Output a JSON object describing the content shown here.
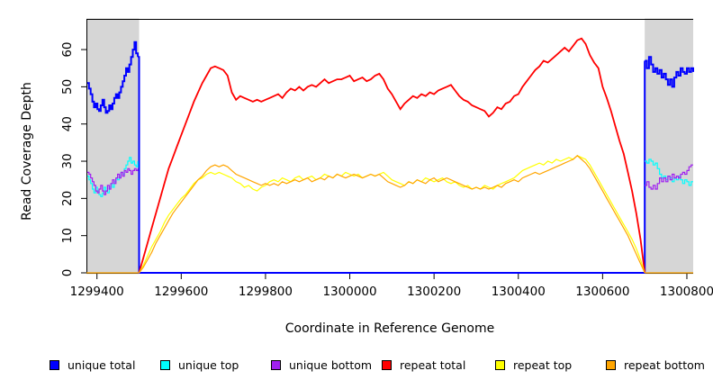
{
  "chart_data": {
    "type": "line",
    "title": "",
    "xlabel": "Coordinate in Reference Genome",
    "ylabel": "Read Coverage Depth",
    "xlim": [
      1299375,
      1300815
    ],
    "ylim": [
      0,
      68
    ],
    "x_ticks": [
      1299400,
      1299600,
      1299800,
      1300000,
      1300200,
      1300400,
      1300600,
      1300800
    ],
    "y_ticks": [
      0,
      10,
      20,
      30,
      40,
      50,
      60
    ],
    "grid": false,
    "legend_position": "bottom",
    "axis_color": "#000000",
    "shaded_regions": [
      {
        "x_from": 1299375,
        "x_to": 1299500,
        "color": "#d6d6d6"
      },
      {
        "x_from": 1300700,
        "x_to": 1300815,
        "color": "#d6d6d6"
      }
    ],
    "series": [
      {
        "name": "unique total",
        "color": "#0000ff",
        "width": 2,
        "render": "step",
        "segments": [
          {
            "x0": 1299377,
            "dx": 4,
            "values": [
              51,
              49.5,
              48,
              46,
              44.5,
              45.5,
              44,
              43.5,
              45,
              46.5,
              44.5,
              43,
              43.5,
              45,
              44,
              45.5,
              47,
              48,
              47,
              48.5,
              50,
              51.5,
              53,
              55,
              54,
              56,
              58,
              60,
              62,
              59,
              58
            ]
          },
          {
            "points": [
              [
                1299497,
                58
              ],
              [
                1299500,
                58
              ],
              [
                1299500,
                0
              ],
              [
                1300700,
                0
              ],
              [
                1300700,
                57
              ]
            ]
          },
          {
            "x0": 1300700,
            "dx": 5,
            "values": [
              57,
              55,
              58,
              56,
              54,
              55,
              53.5,
              54.5,
              52.5,
              53.5,
              52,
              50.5,
              52,
              50,
              52.5,
              54,
              53,
              55,
              54,
              53.5,
              55,
              54,
              55,
              54
            ]
          }
        ]
      },
      {
        "name": "unique top",
        "color": "#00ffff",
        "width": 1.2,
        "render": "step",
        "segments": [
          {
            "x0": 1299377,
            "dx": 4,
            "values": [
              26,
              25,
              24,
              22.5,
              21.5,
              23,
              22,
              21,
              20.5,
              21.5,
              23,
              22,
              21.5,
              23,
              24,
              23,
              24.5,
              25.5,
              25,
              26,
              27,
              26.5,
              28,
              29,
              30,
              31,
              29.5,
              30,
              29,
              28.5,
              30
            ]
          },
          {
            "x0": 1300700,
            "dx": 5,
            "values": [
              30,
              29.5,
              30.5,
              30,
              29,
              29.5,
              28,
              26.5,
              25.5,
              26,
              25,
              26,
              25.5,
              24.5,
              25.5,
              25,
              26,
              25,
              24,
              25,
              24.5,
              23.5,
              24.5,
              24.5
            ]
          }
        ]
      },
      {
        "name": "unique bottom",
        "color": "#a020f0",
        "width": 1.2,
        "render": "step",
        "segments": [
          {
            "x0": 1299377,
            "dx": 4,
            "values": [
              27,
              26.5,
              25.5,
              24.5,
              23.5,
              22,
              21.5,
              22.5,
              23.5,
              22,
              21,
              22,
              23.5,
              22.5,
              24,
              25,
              24,
              25.5,
              26.5,
              25.5,
              27,
              26,
              27.5,
              27,
              28,
              27.5,
              26.5,
              27.5,
              28,
              27.5,
              28
            ]
          },
          {
            "x0": 1300700,
            "dx": 5,
            "values": [
              23.5,
              24.5,
              23,
              22.5,
              23.5,
              22.5,
              24,
              25.5,
              24.5,
              25.5,
              24.5,
              26,
              25,
              26.5,
              25.5,
              26,
              25.5,
              26.5,
              27,
              26.5,
              27.5,
              28.5,
              29,
              29
            ]
          }
        ]
      },
      {
        "name": "repeat total",
        "color": "#ff0000",
        "width": 1.8,
        "render": "linear",
        "segments": [
          {
            "x0": 1299500,
            "dx": 10,
            "values": [
              0,
              4,
              8,
              12,
              16,
              20,
              24,
              28,
              31,
              34,
              37,
              40,
              43,
              46,
              48.5,
              51,
              53,
              55,
              55.5,
              55,
              54.5,
              53,
              48.5,
              46.5,
              47.5,
              47,
              46.5,
              46,
              46.5,
              46,
              46.5,
              47,
              47.5,
              48,
              47,
              48.5,
              49.5,
              49,
              50,
              49,
              50,
              50.5,
              50,
              51,
              52,
              51,
              51.5,
              52,
              52,
              52.5,
              53,
              51.5,
              52,
              52.5,
              51.5,
              52,
              53,
              53.5,
              52,
              49.5,
              48,
              46,
              44,
              45.5,
              46.5,
              47.5,
              47,
              48,
              47.5,
              48.5,
              48,
              49,
              49.5,
              50,
              50.5,
              49,
              47.5,
              46.5,
              46,
              45,
              44.5,
              44,
              43.5,
              42,
              43,
              44.5,
              44,
              45.5,
              46,
              47.5,
              48,
              50,
              51.5,
              53,
              54.5,
              55.5,
              57,
              56.5,
              57.5,
              58.5,
              59.5,
              60.5,
              59.5,
              61,
              62.5,
              63,
              61.5,
              58.5,
              56.5,
              55,
              50,
              47,
              43.5,
              39.5,
              35.5,
              32,
              27,
              22,
              16,
              9,
              0
            ]
          }
        ]
      },
      {
        "name": "repeat top",
        "color": "#ffff00",
        "width": 1.2,
        "render": "linear",
        "segments": [
          {
            "x0": 1299500,
            "dx": 10,
            "values": [
              0,
              2,
              4.5,
              7,
              9,
              11,
              13.5,
              15.5,
              17,
              18.5,
              20,
              21,
              22.5,
              24,
              25,
              25.5,
              26.5,
              27,
              26.5,
              27,
              26.5,
              26,
              25.5,
              24.5,
              24,
              23,
              23.5,
              22.5,
              22,
              23,
              23.5,
              24.5,
              25,
              24.5,
              25.5,
              25,
              24.5,
              25.5,
              26,
              25,
              25.5,
              26,
              25,
              25.5,
              26.5,
              26,
              25.5,
              26.5,
              26,
              27,
              26.5,
              26,
              26.5,
              25.5,
              26,
              26.5,
              26,
              26.5,
              27,
              26,
              25,
              24.5,
              24,
              23.5,
              24.5,
              24,
              25,
              24.5,
              25.5,
              25,
              24.5,
              25,
              25.5,
              24.5,
              24,
              24.5,
              23.5,
              23,
              23.5,
              22.5,
              23,
              22.5,
              23.5,
              23,
              22.5,
              23.5,
              24,
              24.5,
              25,
              25.5,
              26.5,
              27.5,
              28,
              28.5,
              29,
              29.5,
              29,
              30,
              29.5,
              30.5,
              30,
              30.5,
              31,
              30.5,
              31.5,
              31,
              30.5,
              29,
              27,
              25,
              23,
              21,
              19,
              17,
              15,
              13,
              11,
              9,
              6.5,
              3.5,
              0
            ]
          }
        ]
      },
      {
        "name": "repeat bottom",
        "color": "#ffa500",
        "width": 1.2,
        "render": "linear",
        "segments": [
          {
            "points": [
              [
                1299375,
                0
              ],
              [
                1299500,
                0
              ]
            ]
          },
          {
            "x0": 1299500,
            "dx": 10,
            "values": [
              0,
              1.5,
              3.5,
              5.5,
              8,
              10,
              12,
              14,
              16,
              17.5,
              19,
              20.5,
              22,
              23.5,
              25,
              26,
              27.5,
              28.5,
              29,
              28.5,
              29,
              28.5,
              27.5,
              26.5,
              26,
              25.5,
              25,
              24.5,
              24,
              23.5,
              24,
              23.5,
              24,
              23.5,
              24.5,
              24,
              24.5,
              25,
              24.5,
              25,
              25.5,
              24.5,
              25,
              25.5,
              25,
              26,
              25.5,
              26.5,
              26,
              25.5,
              26,
              26.5,
              26,
              25.5,
              26,
              26.5,
              26,
              26.5,
              25.5,
              24.5,
              24,
              23.5,
              23,
              23.5,
              24.5,
              24,
              25,
              24.5,
              24,
              25,
              25.5,
              24.5,
              25,
              25.5,
              25,
              24.5,
              24,
              23.5,
              23,
              22.5,
              23,
              22.5,
              23,
              22.5,
              23,
              23.5,
              23,
              24,
              24.5,
              25,
              24.5,
              25.5,
              26,
              26.5,
              27,
              26.5,
              27,
              27.5,
              28,
              28.5,
              29,
              29.5,
              30,
              30.5,
              31.5,
              30.5,
              29.5,
              28,
              26,
              24,
              22,
              20,
              18,
              16,
              14,
              12,
              10,
              7.5,
              5,
              2.5,
              0
            ]
          },
          {
            "points": [
              [
                1300700,
                0
              ],
              [
                1300815,
                0
              ]
            ]
          }
        ]
      }
    ]
  }
}
